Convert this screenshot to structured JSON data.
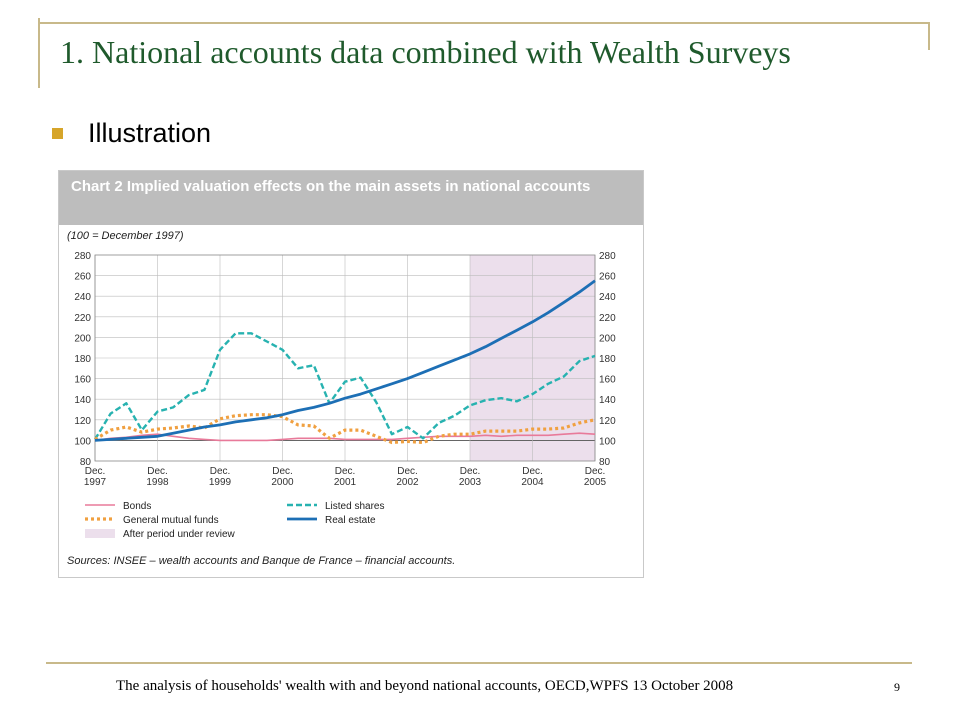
{
  "slide": {
    "title": "1. National accounts data combined with Wealth Surveys",
    "bullet": "Illustration",
    "footer": "The analysis of households' wealth with and beyond national accounts, OECD,WPFS 13 October 2008",
    "page_number": "9"
  },
  "colors": {
    "title_green": "#1f5a2c",
    "accent_gold": "#d6a52a",
    "bonds": "#e87a9a",
    "listed_shares": "#27b2b0",
    "mutual_funds": "#f0a040",
    "real_estate": "#1d6fb5",
    "review_shade": "#ecdfec"
  },
  "chart_data": {
    "type": "line",
    "title": "Chart 2 Implied valuation effects on the main assets in national accounts",
    "subtitle": "(100 = December 1997)",
    "xlabel": "",
    "ylabel": "",
    "ylim": [
      80,
      280
    ],
    "yticks": [
      80,
      100,
      120,
      140,
      160,
      180,
      200,
      220,
      240,
      260,
      280
    ],
    "xlim": [
      1997.917,
      2005.917
    ],
    "xticks": [
      {
        "value": 1997.917,
        "label": [
          "Dec.",
          "1997"
        ]
      },
      {
        "value": 1998.917,
        "label": [
          "Dec.",
          "1998"
        ]
      },
      {
        "value": 1999.917,
        "label": [
          "Dec.",
          "1999"
        ]
      },
      {
        "value": 2000.917,
        "label": [
          "Dec.",
          "2000"
        ]
      },
      {
        "value": 2001.917,
        "label": [
          "Dec.",
          "2001"
        ]
      },
      {
        "value": 2002.917,
        "label": [
          "Dec.",
          "2002"
        ]
      },
      {
        "value": 2003.917,
        "label": [
          "Dec.",
          "2003"
        ]
      },
      {
        "value": 2004.917,
        "label": [
          "Dec.",
          "2004"
        ]
      },
      {
        "value": 2005.917,
        "label": [
          "Dec.",
          "2005"
        ]
      }
    ],
    "shaded_region": {
      "from": 2003.917,
      "to": 2005.917,
      "label": "After period under review"
    },
    "grid": true,
    "legend_position": "bottom",
    "series": [
      {
        "name": "Bonds",
        "style": "solid",
        "color": "#e87a9a",
        "x": [
          1997.917,
          1998.167,
          1998.417,
          1998.667,
          1998.917,
          1999.167,
          1999.417,
          1999.667,
          1999.917,
          2000.167,
          2000.417,
          2000.667,
          2000.917,
          2001.167,
          2001.417,
          2001.667,
          2001.917,
          2002.167,
          2002.417,
          2002.667,
          2002.917,
          2003.167,
          2003.417,
          2003.667,
          2003.917,
          2004.167,
          2004.417,
          2004.667,
          2004.917,
          2005.167,
          2005.417,
          2005.667,
          2005.917
        ],
        "values": [
          100,
          102,
          103,
          105,
          106,
          104,
          102,
          101,
          100,
          100,
          100,
          100,
          101,
          102,
          102,
          102,
          101,
          101,
          101,
          101,
          102,
          103,
          104,
          104,
          104,
          105,
          104,
          105,
          105,
          105,
          106,
          107,
          106
        ]
      },
      {
        "name": "Listed shares",
        "style": "dashed",
        "color": "#27b2b0",
        "x": [
          1997.917,
          1998.167,
          1998.417,
          1998.667,
          1998.917,
          1999.167,
          1999.417,
          1999.667,
          1999.917,
          2000.167,
          2000.417,
          2000.667,
          2000.917,
          2001.167,
          2001.417,
          2001.667,
          2001.917,
          2002.167,
          2002.417,
          2002.667,
          2002.917,
          2003.167,
          2003.417,
          2003.667,
          2003.917,
          2004.167,
          2004.417,
          2004.667,
          2004.917,
          2005.167,
          2005.417,
          2005.667,
          2005.917
        ],
        "values": [
          101,
          126,
          136,
          110,
          128,
          132,
          144,
          149,
          188,
          204,
          204,
          196,
          188,
          170,
          173,
          136,
          157,
          161,
          137,
          106,
          113,
          102,
          117,
          124,
          134,
          139,
          141,
          138,
          145,
          155,
          162,
          177,
          182
        ]
      },
      {
        "name": "General mutual funds",
        "style": "dotted",
        "color": "#f0a040",
        "x": [
          1997.917,
          1998.167,
          1998.417,
          1998.667,
          1998.917,
          1999.167,
          1999.417,
          1999.667,
          1999.917,
          2000.167,
          2000.417,
          2000.667,
          2000.917,
          2001.167,
          2001.417,
          2001.667,
          2001.917,
          2002.167,
          2002.417,
          2002.667,
          2002.917,
          2003.167,
          2003.417,
          2003.667,
          2003.917,
          2004.167,
          2004.417,
          2004.667,
          2004.917,
          2005.167,
          2005.417,
          2005.667,
          2005.917
        ],
        "values": [
          101,
          110,
          113,
          108,
          111,
          112,
          114,
          112,
          121,
          124,
          125,
          125,
          123,
          115,
          114,
          102,
          110,
          110,
          104,
          98,
          99,
          98,
          104,
          106,
          106,
          109,
          109,
          109,
          111,
          111,
          112,
          117,
          120
        ]
      },
      {
        "name": "Real estate",
        "style": "solid-thick",
        "color": "#1d6fb5",
        "x": [
          1997.917,
          1998.167,
          1998.417,
          1998.667,
          1998.917,
          1999.167,
          1999.417,
          1999.667,
          1999.917,
          2000.167,
          2000.417,
          2000.667,
          2000.917,
          2001.167,
          2001.417,
          2001.667,
          2001.917,
          2002.167,
          2002.417,
          2002.667,
          2002.917,
          2003.167,
          2003.417,
          2003.667,
          2003.917,
          2004.167,
          2004.417,
          2004.667,
          2004.917,
          2005.167,
          2005.417,
          2005.667,
          2005.917
        ],
        "values": [
          100,
          101,
          102,
          103,
          104,
          107,
          110,
          113,
          115,
          118,
          120,
          122,
          125,
          129,
          132,
          136,
          141,
          145,
          150,
          155,
          160,
          166,
          172,
          178,
          184,
          191,
          199,
          207,
          215,
          224,
          234,
          244,
          255
        ]
      }
    ],
    "legend": [
      {
        "name": "Bonds",
        "style": "solid",
        "color": "#e87a9a"
      },
      {
        "name": "Listed shares",
        "style": "dashed",
        "color": "#27b2b0"
      },
      {
        "name": "General mutual funds",
        "style": "dotted",
        "color": "#f0a040"
      },
      {
        "name": "Real estate",
        "style": "solid-thick",
        "color": "#1d6fb5"
      },
      {
        "name": "After period under review",
        "style": "swatch",
        "color": "#ecdfec"
      }
    ],
    "source": "Sources: INSEE – wealth accounts and Banque de France – financial accounts."
  }
}
